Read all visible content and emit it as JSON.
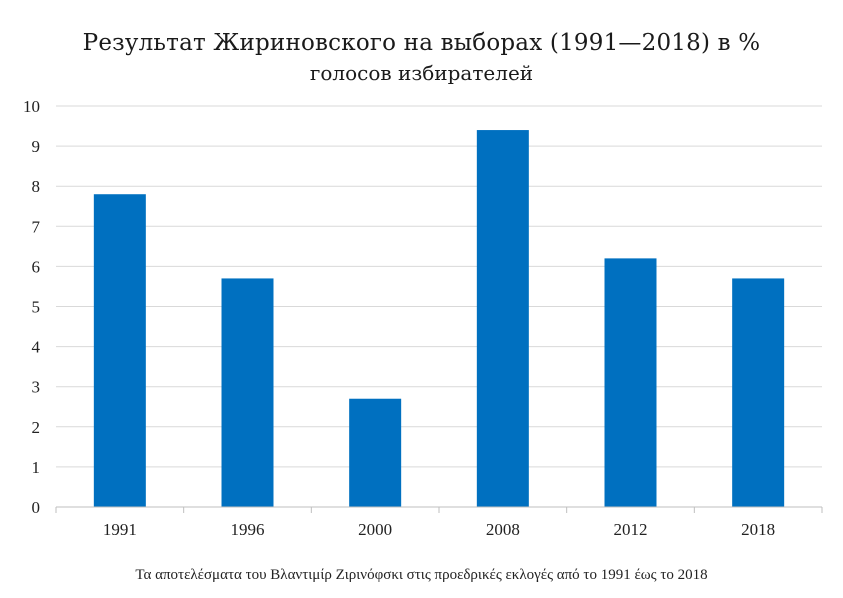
{
  "chart_data": {
    "type": "bar",
    "title": "Результат Жириновского на выборах (1991—2018) в %",
    "subtitle": "голосов избирателей",
    "categories": [
      "1991",
      "1996",
      "2000",
      "2008",
      "2012",
      "2018"
    ],
    "values": [
      7.8,
      5.7,
      2.7,
      9.4,
      6.2,
      5.7
    ],
    "ylim": [
      0,
      10
    ],
    "yticks": [
      0,
      1,
      2,
      3,
      4,
      5,
      6,
      7,
      8,
      9,
      10
    ],
    "xlabel": "",
    "ylabel": "",
    "grid": true,
    "bar_color": "#0070C0",
    "grid_color": "#d9d9d9"
  },
  "caption": "Τα αποτελέσματα του Βλαντιμίρ Ζιρινόφσκι στις προεδρικές εκλογές από το 1991 έως το 2018"
}
